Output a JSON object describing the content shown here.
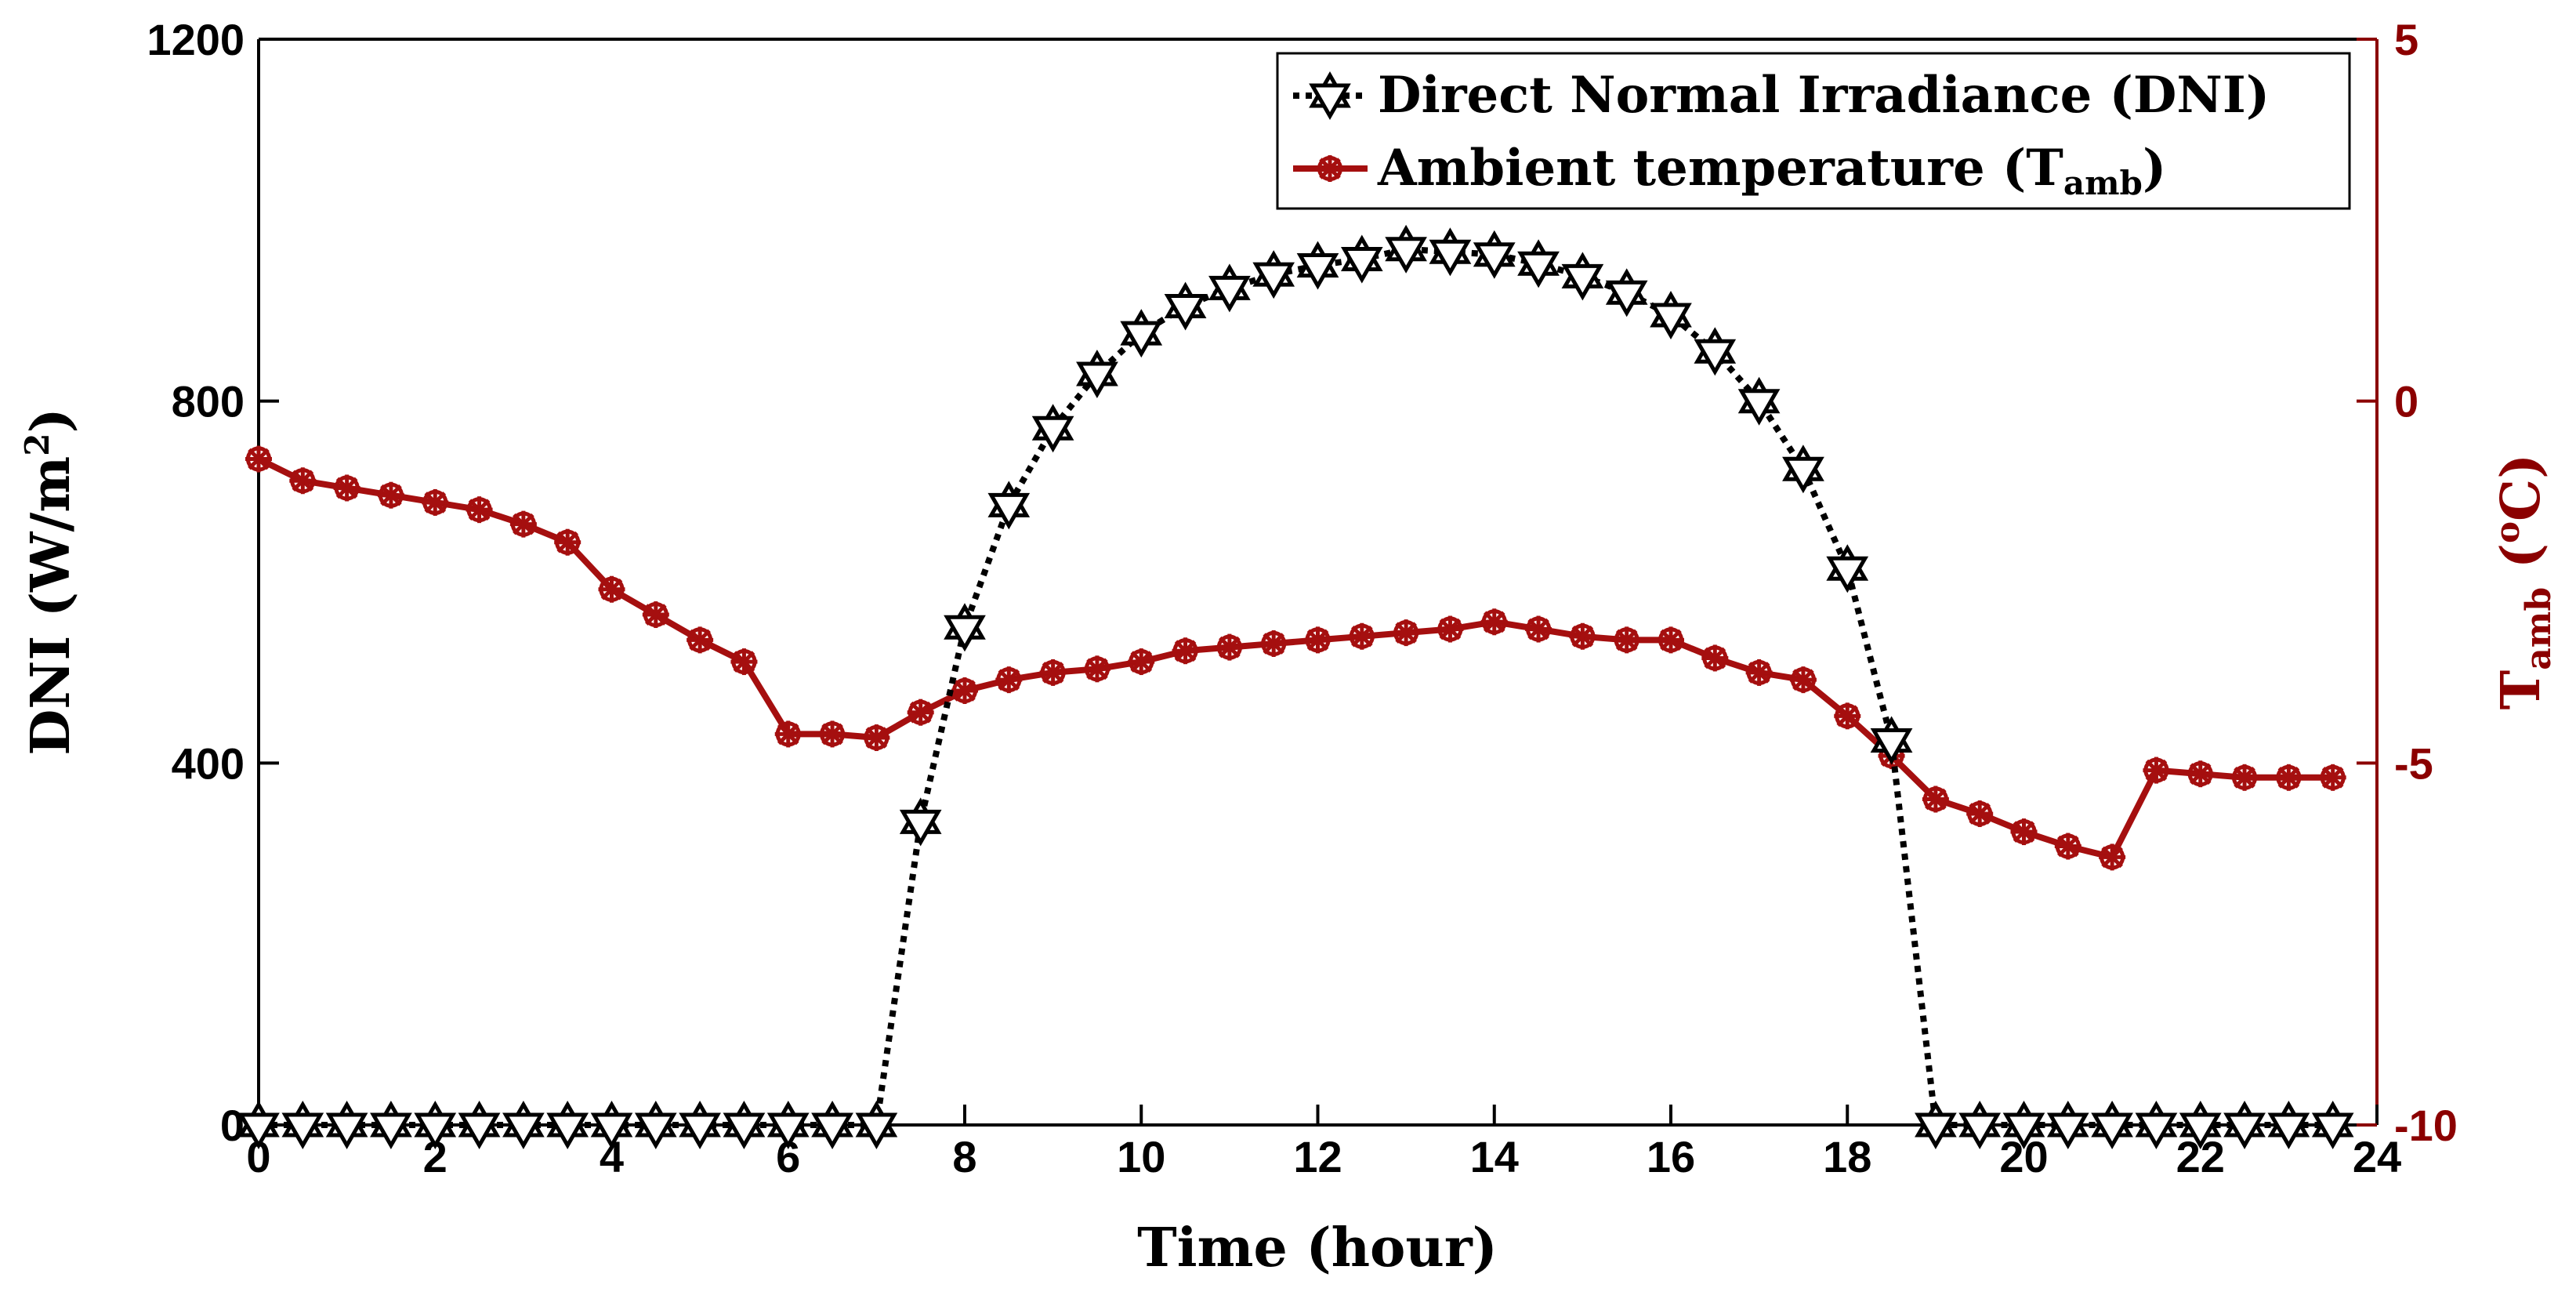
{
  "chart_data": {
    "type": "line",
    "title": "",
    "xlabel": "Time (hour)",
    "xlim": [
      0,
      24
    ],
    "xticks": [
      0,
      2,
      4,
      6,
      8,
      10,
      12,
      14,
      16,
      18,
      20,
      22,
      24
    ],
    "grid": false,
    "legend_position": "top-right",
    "y_left": {
      "label_main": "DNI (W/m",
      "label_sup": "2",
      "label_tail": ")",
      "ylim": [
        0,
        1200
      ],
      "ticks": [
        0,
        400,
        800,
        1200
      ],
      "color": "#000000"
    },
    "y_right": {
      "label_main": "T",
      "label_sub": "amb",
      "label_open": " (",
      "label_sup": "o",
      "label_tail": "C)",
      "ylim": [
        -10,
        5
      ],
      "ticks": [
        -10,
        -5,
        0,
        5
      ],
      "color": "#8b0000"
    },
    "x": [
      0,
      0.5,
      1,
      1.5,
      2,
      2.5,
      3,
      3.5,
      4,
      4.5,
      5,
      5.5,
      6,
      6.5,
      7,
      7.5,
      8,
      8.5,
      9,
      9.5,
      10,
      10.5,
      11,
      11.5,
      12,
      12.5,
      13,
      13.5,
      14,
      14.5,
      15,
      15.5,
      16,
      16.5,
      17,
      17.5,
      18,
      18.5,
      19,
      19.5,
      20,
      20.5,
      21,
      21.5,
      22,
      22.5,
      23,
      23.5
    ],
    "series": [
      {
        "name": "Direct Normal Irradiance (DNI)",
        "axis": "left",
        "color": "#000000",
        "line_style": "dotted",
        "marker": "hexagram",
        "values": [
          0,
          0,
          0,
          0,
          0,
          0,
          0,
          0,
          0,
          0,
          0,
          0,
          0,
          0,
          0,
          335,
          550,
          685,
          770,
          830,
          875,
          905,
          925,
          940,
          950,
          957,
          968,
          965,
          962,
          952,
          938,
          920,
          895,
          855,
          800,
          725,
          615,
          425,
          0,
          0,
          0,
          0,
          0,
          0,
          0,
          0,
          0,
          0
        ]
      },
      {
        "name_main": "Ambient temperature (T",
        "name_sub": "amb",
        "name_tail": ")",
        "axis": "right",
        "color": "#a50f0f",
        "line_style": "solid",
        "marker": "asterisk-circle",
        "values": [
          -0.8,
          -1.1,
          -1.2,
          -1.3,
          -1.4,
          -1.5,
          -1.7,
          -1.95,
          -2.6,
          -2.95,
          -3.3,
          -3.6,
          -4.6,
          -4.6,
          -4.65,
          -4.3,
          -4.0,
          -3.85,
          -3.75,
          -3.7,
          -3.6,
          -3.45,
          -3.4,
          -3.35,
          -3.3,
          -3.25,
          -3.2,
          -3.15,
          -3.05,
          -3.15,
          -3.25,
          -3.3,
          -3.3,
          -3.55,
          -3.75,
          -3.85,
          -4.35,
          -4.9,
          -5.5,
          -5.7,
          -5.95,
          -6.15,
          -6.3,
          -5.1,
          -5.15,
          -5.2,
          -5.2,
          -5.2
        ]
      }
    ]
  }
}
